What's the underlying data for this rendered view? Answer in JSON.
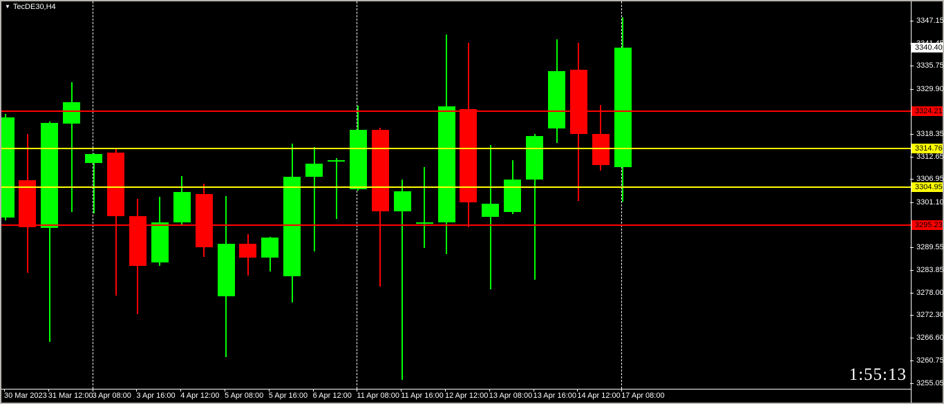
{
  "window": {
    "title": "TecDE30,H4",
    "timer": "1:55:13"
  },
  "chart_data": {
    "type": "candlestick",
    "symbol": "TecDE30",
    "timeframe": "H4",
    "title": "TecDE30,H4",
    "ylim": [
      3255.05,
      3347.15
    ],
    "colors": {
      "bull": "#00ff00",
      "bear": "#ff0000",
      "background": "#000000",
      "axis_text": "#ffffff"
    },
    "price_ticks": [
      "3347.15",
      "3341.45",
      "3335.75",
      "3329.90",
      "3318.35",
      "3312.65",
      "3306.95",
      "3301.10",
      "3289.55",
      "3283.85",
      "3278.00",
      "3272.30",
      "3266.60",
      "3260.75",
      "3255.05"
    ],
    "price_badges": [
      {
        "value": "3340.40",
        "bg": "#ffffff"
      },
      {
        "value": "3324.21",
        "bg": "#ff0000"
      },
      {
        "value": "3314.76",
        "bg": "#ffff00"
      },
      {
        "value": "3304.95",
        "bg": "#ffff00"
      },
      {
        "value": "3295.23",
        "bg": "#ff0000"
      }
    ],
    "hlines": [
      {
        "price": 3324.21,
        "color": "#ff0000"
      },
      {
        "price": 3314.76,
        "color": "#ffff00"
      },
      {
        "price": 3304.95,
        "color": "#ffff00"
      },
      {
        "price": 3295.23,
        "color": "#ff0000"
      }
    ],
    "time_labels": [
      "30 Mar 2023",
      "31 Mar 12:00",
      "3 Apr 08:00",
      "3 Apr 16:00",
      "4 Apr 12:00",
      "5 Apr 08:00",
      "5 Apr 16:00",
      "6 Apr 12:00",
      "11 Apr 08:00",
      "11 Apr 16:00",
      "12 Apr 12:00",
      "13 Apr 08:00",
      "13 Apr 16:00",
      "14 Apr 12:00",
      "17 Apr 08:00"
    ],
    "separator_label_indices": [
      2,
      8,
      14
    ],
    "candles": [
      {
        "o": 3297.2,
        "h": 3323.5,
        "l": 3296.5,
        "c": 3322.6
      },
      {
        "o": 3306.6,
        "h": 3318.4,
        "l": 3283.1,
        "c": 3294.7
      },
      {
        "o": 3294.5,
        "h": 3321.5,
        "l": 3265.5,
        "c": 3321.2
      },
      {
        "o": 3321.1,
        "h": 3331.6,
        "l": 3298.6,
        "c": 3326.5
      },
      {
        "o": 3311.0,
        "h": 3313.5,
        "l": 3298.2,
        "c": 3313.3
      },
      {
        "o": 3313.7,
        "h": 3314.7,
        "l": 3277.3,
        "c": 3297.5
      },
      {
        "o": 3297.5,
        "h": 3301.9,
        "l": 3272.6,
        "c": 3284.9
      },
      {
        "o": 3285.7,
        "h": 3302.4,
        "l": 3284.9,
        "c": 3295.9
      },
      {
        "o": 3295.9,
        "h": 3307.7,
        "l": 3295.4,
        "c": 3303.7
      },
      {
        "o": 3303.1,
        "h": 3305.8,
        "l": 3287.2,
        "c": 3289.6
      },
      {
        "o": 3277.1,
        "h": 3302.6,
        "l": 3261.7,
        "c": 3290.5
      },
      {
        "o": 3290.5,
        "h": 3292.9,
        "l": 3282.4,
        "c": 3287.0
      },
      {
        "o": 3287.0,
        "h": 3292.3,
        "l": 3283.5,
        "c": 3292.1
      },
      {
        "o": 3282.2,
        "h": 3316.0,
        "l": 3275.5,
        "c": 3307.5
      },
      {
        "o": 3307.5,
        "h": 3315.1,
        "l": 3288.5,
        "c": 3310.9
      },
      {
        "o": 3311.4,
        "h": 3312.3,
        "l": 3296.8,
        "c": 3311.7
      },
      {
        "o": 3304.4,
        "h": 3325.6,
        "l": 3304.0,
        "c": 3319.5
      },
      {
        "o": 3319.5,
        "h": 3320.0,
        "l": 3279.6,
        "c": 3298.7
      },
      {
        "o": 3298.7,
        "h": 3306.8,
        "l": 3255.9,
        "c": 3303.8
      },
      {
        "o": 3295.6,
        "h": 3310.0,
        "l": 3289.4,
        "c": 3295.9
      },
      {
        "o": 3295.9,
        "h": 3343.7,
        "l": 3287.8,
        "c": 3325.4
      },
      {
        "o": 3324.7,
        "h": 3341.6,
        "l": 3294.7,
        "c": 3301.0
      },
      {
        "o": 3297.3,
        "h": 3315.6,
        "l": 3278.9,
        "c": 3300.7
      },
      {
        "o": 3298.6,
        "h": 3311.7,
        "l": 3298.0,
        "c": 3306.8
      },
      {
        "o": 3306.8,
        "h": 3318.4,
        "l": 3281.3,
        "c": 3317.9
      },
      {
        "o": 3319.8,
        "h": 3342.5,
        "l": 3316.1,
        "c": 3334.4
      },
      {
        "o": 3334.8,
        "h": 3341.6,
        "l": 3301.4,
        "c": 3318.4
      },
      {
        "o": 3318.4,
        "h": 3325.8,
        "l": 3309.1,
        "c": 3310.5
      },
      {
        "o": 3310.0,
        "h": 3348.1,
        "l": 3301.2,
        "c": 3340.4
      }
    ]
  }
}
